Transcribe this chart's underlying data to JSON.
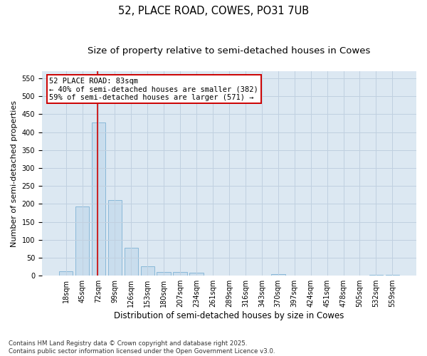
{
  "title1": "52, PLACE ROAD, COWES, PO31 7UB",
  "title2": "Size of property relative to semi-detached houses in Cowes",
  "xlabel": "Distribution of semi-detached houses by size in Cowes",
  "ylabel": "Number of semi-detached properties",
  "categories": [
    "18sqm",
    "45sqm",
    "72sqm",
    "99sqm",
    "126sqm",
    "153sqm",
    "180sqm",
    "207sqm",
    "234sqm",
    "261sqm",
    "289sqm",
    "316sqm",
    "343sqm",
    "370sqm",
    "397sqm",
    "424sqm",
    "451sqm",
    "478sqm",
    "505sqm",
    "532sqm",
    "559sqm"
  ],
  "values": [
    12,
    193,
    427,
    210,
    77,
    27,
    11,
    11,
    8,
    1,
    0,
    0,
    0,
    4,
    0,
    0,
    0,
    0,
    0,
    3,
    3
  ],
  "bar_color": "#c9dded",
  "bar_edgecolor": "#89b8d8",
  "bar_linewidth": 0.7,
  "vline_color": "#cc0000",
  "vline_linewidth": 1.2,
  "vline_xindex": 1.93,
  "annotation_text": "52 PLACE ROAD: 83sqm\n← 40% of semi-detached houses are smaller (382)\n59% of semi-detached houses are larger (571) →",
  "annotation_box_edgecolor": "#cc0000",
  "annotation_box_facecolor": "#ffffff",
  "annotation_fontsize": 7.5,
  "ylim_max": 570,
  "yticks": [
    0,
    50,
    100,
    150,
    200,
    250,
    300,
    350,
    400,
    450,
    500,
    550
  ],
  "grid_color": "#c0d0e0",
  "background_color": "#dce8f2",
  "footer_text": "Contains HM Land Registry data © Crown copyright and database right 2025.\nContains public sector information licensed under the Open Government Licence v3.0.",
  "title1_fontsize": 10.5,
  "title2_fontsize": 9.5,
  "xlabel_fontsize": 8.5,
  "ylabel_fontsize": 8,
  "tick_fontsize": 7,
  "footer_fontsize": 6.2
}
